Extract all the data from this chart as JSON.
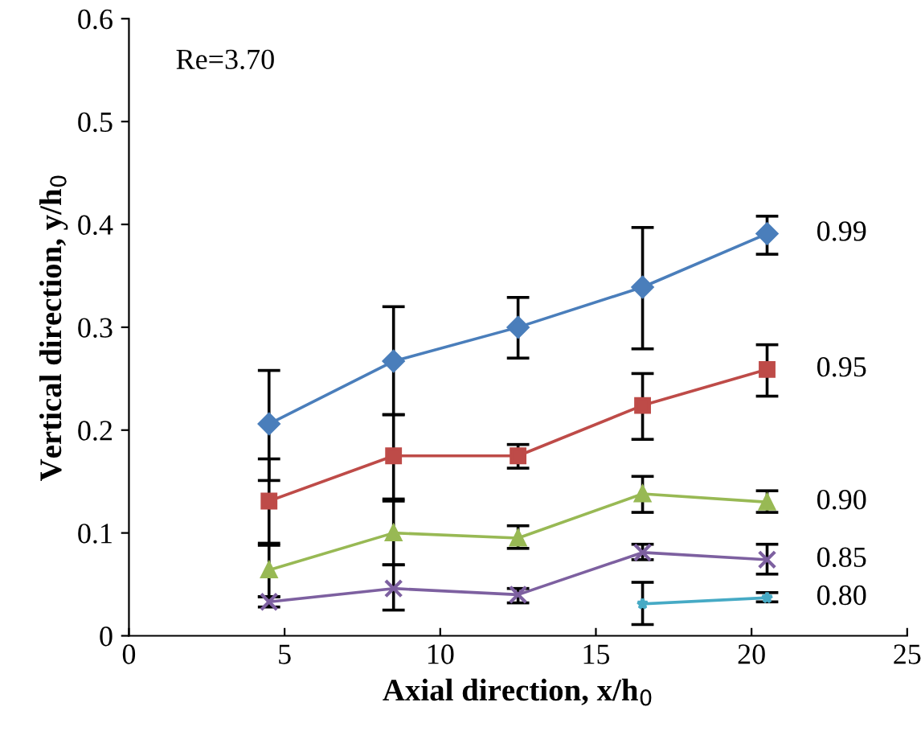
{
  "chart_data": {
    "type": "line",
    "xlabel": "Axial direction, x/h$_{0}$",
    "ylabel": "Vertical direction, y/h$_{0}$",
    "x": [
      4.5,
      8.5,
      12.5,
      16.5,
      20.5
    ],
    "xlim": [
      0,
      25
    ],
    "xticks": [
      0,
      5,
      10,
      15,
      20,
      25
    ],
    "ylim": [
      0,
      0.6
    ],
    "yticks": [
      0,
      0.1,
      0.2,
      0.3,
      0.4,
      0.5,
      0.6
    ],
    "grid": false,
    "legend": false,
    "line_style": "solid",
    "annotations": [
      "Re=3.70"
    ],
    "series": [
      {
        "name": "0.99",
        "color": "#4a7ebb",
        "marker": "diamond",
        "values": [
          0.206,
          0.267,
          0.3,
          0.339,
          0.391
        ],
        "errors": [
          [
            0.151,
            0.258
          ],
          [
            0.215,
            0.32
          ],
          [
            0.27,
            0.329
          ],
          [
            0.279,
            0.397
          ],
          [
            0.371,
            0.408
          ]
        ]
      },
      {
        "name": "0.95",
        "color": "#be4b48",
        "marker": "square",
        "values": [
          0.131,
          0.175,
          0.175,
          0.224,
          0.259
        ],
        "errors": [
          [
            0.09,
            0.172
          ],
          [
            0.133,
            0.215
          ],
          [
            0.163,
            0.186
          ],
          [
            0.191,
            0.255
          ],
          [
            0.233,
            0.283
          ]
        ]
      },
      {
        "name": "0.90",
        "color": "#98b954",
        "marker": "triangle",
        "values": [
          0.064,
          0.1,
          0.095,
          0.138,
          0.13
        ],
        "errors": [
          [
            0.038,
            0.088
          ],
          [
            0.069,
            0.131
          ],
          [
            0.085,
            0.107
          ],
          [
            0.12,
            0.155
          ],
          [
            0.12,
            0.141
          ]
        ]
      },
      {
        "name": "0.85",
        "color": "#7d60a0",
        "marker": "cross",
        "values": [
          0.033,
          0.046,
          0.04,
          0.081,
          0.074
        ],
        "errors": [
          [
            0.028,
            0.038
          ],
          [
            0.025,
            0.069
          ],
          [
            0.032,
            0.046
          ],
          [
            0.074,
            0.089
          ],
          [
            0.06,
            0.089
          ]
        ]
      },
      {
        "name": "0.80",
        "color": "#46aac5",
        "marker": "star",
        "x": [
          16.5,
          20.5
        ],
        "values": [
          0.031,
          0.037
        ],
        "errors": [
          [
            0.011,
            0.052
          ],
          [
            0.033,
            0.042
          ]
        ]
      }
    ]
  }
}
